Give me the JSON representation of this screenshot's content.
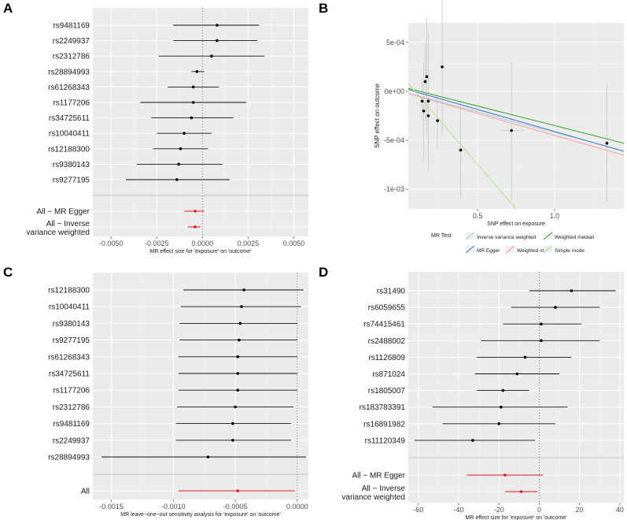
{
  "panels": [
    {
      "letter": "A",
      "type": "forest",
      "xlabel": "MR effect size for 'exposure' on 'outcome'",
      "xlim": [
        -0.006,
        0.0058
      ],
      "xticks": [
        -0.005,
        -0.0025,
        0.0,
        0.0025,
        0.005
      ],
      "xtick_labels": [
        "-0.0050",
        "-0.0025",
        "0.0000",
        "0.0025",
        "0.0050"
      ],
      "rows": [
        {
          "label": "rs9481169",
          "est": 0.0008,
          "lo": -0.0016,
          "hi": 0.0031
        },
        {
          "label": "rs2249937",
          "est": 0.0008,
          "lo": -0.0016,
          "hi": 0.003
        },
        {
          "label": "rs2312786",
          "est": 0.0005,
          "lo": -0.0024,
          "hi": 0.0034
        },
        {
          "label": "rs28894993",
          "est": -0.0003,
          "lo": -0.0006,
          "hi": 0.0001
        },
        {
          "label": "rs61268343",
          "est": -0.0005,
          "lo": -0.0019,
          "hi": 0.0009
        },
        {
          "label": "rs1177206",
          "est": -0.0005,
          "lo": -0.0034,
          "hi": 0.0024
        },
        {
          "label": "rs34725611",
          "est": -0.0006,
          "lo": -0.0028,
          "hi": 0.0017
        },
        {
          "label": "rs10040411",
          "est": -0.001,
          "lo": -0.0025,
          "hi": 0.0005
        },
        {
          "label": "rs12188300",
          "est": -0.0012,
          "lo": -0.0027,
          "hi": 0.0003
        },
        {
          "label": "rs9380143",
          "est": -0.0013,
          "lo": -0.0036,
          "hi": 0.0011
        },
        {
          "label": "rs9277195",
          "est": -0.0014,
          "lo": -0.0042,
          "hi": 0.0015
        }
      ],
      "summary": [
        {
          "label": "All − MR Egger",
          "est": -0.0004,
          "lo": -0.001,
          "hi": 0.0001
        },
        {
          "label": "All − Inverse variance weighted",
          "label_line1": "All − Inverse",
          "label_line2": "variance weighted",
          "est": -0.0004,
          "lo": -0.0008,
          "hi": -0.0001
        }
      ]
    },
    {
      "letter": "B",
      "type": "scatter",
      "xlabel": "SNP effect on exposure",
      "ylabel": "SNP effect on outcome",
      "xlim": [
        0.05,
        1.45
      ],
      "ylim": [
        -0.0012,
        0.0007
      ],
      "xticks": [
        0.5,
        1.0
      ],
      "xtick_labels": [
        "0.5",
        "1.0"
      ],
      "yticks": [
        0.0005,
        0.0,
        -0.0005,
        -0.001
      ],
      "ytick_labels": [
        "5e-04",
        "0e+00",
        "-5e-04",
        "-1e-03"
      ],
      "points": [
        {
          "x": 0.14,
          "y": -0.0001,
          "xse": 0.005,
          "yse": 0.0002
        },
        {
          "x": 0.15,
          "y": -0.0002,
          "xse": 0.005,
          "yse": 0.0005
        },
        {
          "x": 0.16,
          "y": 0.0001,
          "xse": 0.005,
          "yse": 0.0004
        },
        {
          "x": 0.17,
          "y": 0.00015,
          "xse": 0.005,
          "yse": 0.0006
        },
        {
          "x": 0.18,
          "y": -0.0001,
          "xse": 0.006,
          "yse": 0.0007
        },
        {
          "x": 0.18,
          "y": -0.00025,
          "xse": 0.006,
          "yse": 0.0004
        },
        {
          "x": 0.24,
          "y": -0.0003,
          "xse": 0.007,
          "yse": 0.0003
        },
        {
          "x": 0.27,
          "y": 0.00025,
          "xse": 0.02,
          "yse": 0.0007
        },
        {
          "x": 0.39,
          "y": -0.0006,
          "xse": 0.015,
          "yse": 0.0005
        },
        {
          "x": 0.72,
          "y": -0.0004,
          "xse": 0.08,
          "yse": 0.0007
        },
        {
          "x": 1.34,
          "y": -0.00053,
          "xse": 0.015,
          "yse": 0.0006
        }
      ],
      "lines": [
        {
          "name": "Inverse variance weighted",
          "slope": -0.00042,
          "color": "#a6cee3"
        },
        {
          "name": "MR Egger",
          "slope": -0.00045,
          "intercept": 4e-05,
          "color": "#3b78c2"
        },
        {
          "name": "Weighted median",
          "slope": -0.0004,
          "intercept": 5e-05,
          "color": "#33a02c"
        },
        {
          "name": "Weighted mode",
          "slope": -0.00045,
          "color": "#fb9a99"
        },
        {
          "name": "Simple mode",
          "slope": -0.00183,
          "intercept": 0.00017,
          "color": "#b2df8a"
        }
      ],
      "legend": {
        "title": "MR Test",
        "entries": [
          "Inverse variance weighted",
          "Weighted median",
          "MR Egger",
          "Weighted mode",
          "Simple mode"
        ]
      }
    },
    {
      "letter": "C",
      "type": "forest",
      "xlabel": "MR leave−one−out sensitivity analysis for 'exposure' on 'outcome'",
      "xlim": [
        -0.00165,
        9e-05
      ],
      "xticks": [
        -0.0015,
        -0.001,
        -0.0005,
        0.0
      ],
      "xtick_labels": [
        "-0.0015",
        "-0.0010",
        "-0.0005",
        "0.0000"
      ],
      "rows": [
        {
          "label": "rs12188300",
          "est": -0.00043,
          "lo": -0.00092,
          "hi": 5e-05
        },
        {
          "label": "rs10040411",
          "est": -0.00045,
          "lo": -0.00094,
          "hi": 3e-05
        },
        {
          "label": "rs9380143",
          "est": -0.00046,
          "lo": -0.00095,
          "hi": 0.0
        },
        {
          "label": "rs9277195",
          "est": -0.00047,
          "lo": -0.00095,
          "hi": 0.0
        },
        {
          "label": "rs61268343",
          "est": -0.00048,
          "lo": -0.00096,
          "hi": 0.0
        },
        {
          "label": "rs34725611",
          "est": -0.00048,
          "lo": -0.00096,
          "hi": 0.0
        },
        {
          "label": "rs1177206",
          "est": -0.00048,
          "lo": -0.00096,
          "hi": 0.0
        },
        {
          "label": "rs2312786",
          "est": -0.0005,
          "lo": -0.00097,
          "hi": -3e-05
        },
        {
          "label": "rs9481169",
          "est": -0.00052,
          "lo": -0.00098,
          "hi": -5e-05
        },
        {
          "label": "rs2249937",
          "est": -0.00052,
          "lo": -0.00098,
          "hi": -5e-05
        },
        {
          "label": "rs28894993",
          "est": -0.00072,
          "lo": -0.00158,
          "hi": 7e-05
        }
      ],
      "summary": [
        {
          "label": "All",
          "est": -0.00048,
          "lo": -0.00096,
          "hi": -2e-05
        }
      ]
    },
    {
      "letter": "D",
      "type": "forest",
      "xlabel": "MR effect size for 'exposure' on 'outcome'",
      "xlim": [
        -65,
        42
      ],
      "xticks": [
        -60,
        -40,
        -20,
        0,
        20,
        40
      ],
      "xtick_labels": [
        "-60",
        "-40",
        "-20",
        "0",
        "20",
        "40"
      ],
      "rows": [
        {
          "label": "rs31490",
          "est": 16,
          "lo": -5,
          "hi": 38
        },
        {
          "label": "rs6059655",
          "est": 8,
          "lo": -14,
          "hi": 30
        },
        {
          "label": "rs74415461",
          "est": 1,
          "lo": -18,
          "hi": 21
        },
        {
          "label": "rs2488002",
          "est": 1,
          "lo": -29,
          "hi": 30
        },
        {
          "label": "rs1126809",
          "est": -7,
          "lo": -31,
          "hi": 16
        },
        {
          "label": "rs871024",
          "est": -11,
          "lo": -32,
          "hi": 10
        },
        {
          "label": "rs1805007",
          "est": -18,
          "lo": -31,
          "hi": -5
        },
        {
          "label": "rs183783391",
          "est": -19,
          "lo": -53,
          "hi": 14
        },
        {
          "label": "rs16891982",
          "est": -20,
          "lo": -48,
          "hi": 8
        },
        {
          "label": "rs11120349",
          "est": -33,
          "lo": -62,
          "hi": -2
        }
      ],
      "summary": [
        {
          "label": "All − MR Egger",
          "est": -17,
          "lo": -36,
          "hi": 2
        },
        {
          "label": "All − Inverse variance weighted",
          "label_line1": "All − Inverse",
          "label_line2": "variance weighted",
          "est": -9,
          "lo": -17,
          "hi": -1
        }
      ]
    }
  ]
}
